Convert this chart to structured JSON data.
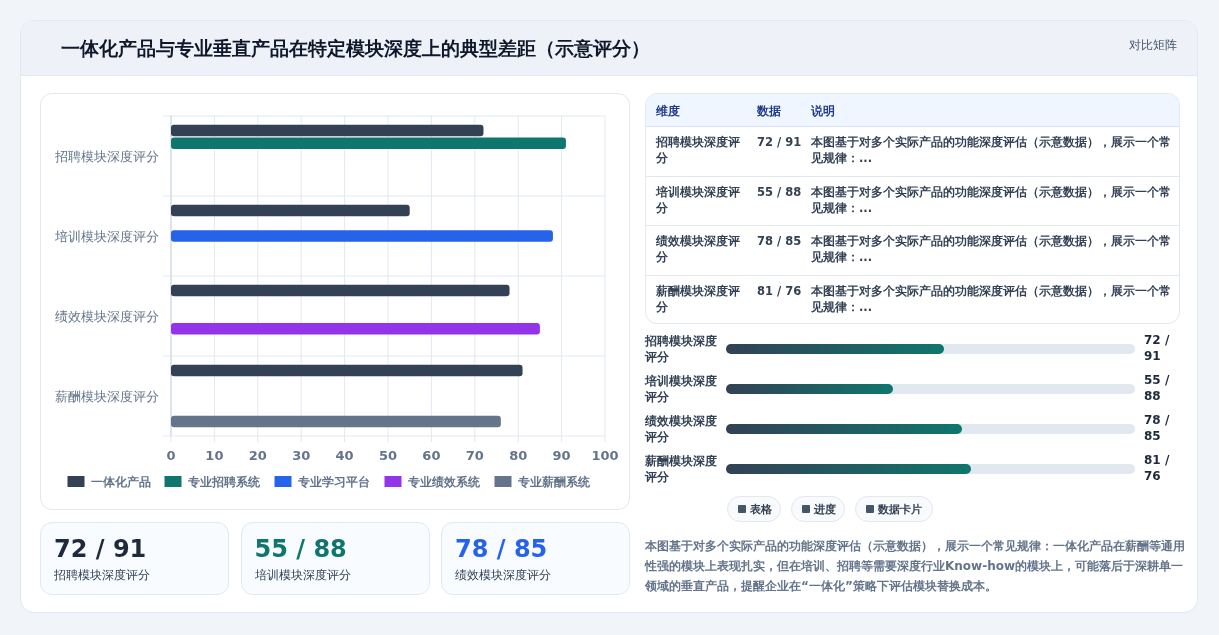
{
  "chart_data": [
    {
      "type": "other",
      "title": "一体化产品与专业垂直产品在特定模块深度上的典型差距（示意评分）",
      "subtitle": "对比矩阵"
    },
    {
      "type": "bar",
      "orientation": "horizontal",
      "categories": [
        "招聘模块深度评分",
        "培训模块深度评分",
        "绩效模块深度评分",
        "薪酬模块深度评分"
      ],
      "series": [
        {
          "name": "一体化产品",
          "color": "#334155",
          "values": [
            72,
            55,
            78,
            81
          ]
        },
        {
          "name": "专业招聘系统",
          "color": "#0f766e",
          "values": [
            91,
            null,
            null,
            null
          ]
        },
        {
          "name": "专业学习平台",
          "color": "#2563eb",
          "values": [
            null,
            88,
            null,
            null
          ]
        },
        {
          "name": "专业绩效系统",
          "color": "#9333ea",
          "values": [
            null,
            null,
            85,
            null
          ]
        },
        {
          "name": "专业薪酬系统",
          "color": "#64748b",
          "values": [
            null,
            null,
            null,
            76
          ]
        }
      ],
      "xlim": [
        0,
        100
      ],
      "xticks": [
        0,
        10,
        20,
        30,
        40,
        50,
        60,
        70,
        80,
        90,
        100
      ],
      "grid": true,
      "legend": "bottom"
    },
    {
      "type": "other",
      "annotations": [
        "维度",
        "数据",
        "说明",
        "招聘模块深度评分",
        "72 / 91",
        "本图基于对多个实际产品的功能深度评估（示意数据），展示一个常见规律：...",
        "培训模块深度评分",
        "55 / 88",
        "本图基于对多个实际产品的功能深度评估（示意数据），展示一个常见规律：...",
        "绩效模块深度评分",
        "78 / 85",
        "本图基于对多个实际产品的功能深度评估（示意数据），展示一个常见规律：...",
        "薪酬模块深度评分",
        "81 / 76",
        "本图基于对多个实际产品的功能深度评估（示意数据），展示一个常见规律：..."
      ]
    },
    {
      "type": "bar",
      "orientation": "horizontal",
      "xlim": [
        0,
        135
      ],
      "tick_labels": false,
      "categories": [
        "招聘模块深度评分",
        "培训模块深度评分",
        "绩效模块深度评分",
        "薪酬模块深度评分"
      ],
      "values": [
        72,
        55,
        78,
        81
      ],
      "color": "#0f766e",
      "value_labels": [
        "72 / 91",
        "55 / 88",
        "78 / 85",
        "81 / 76"
      ]
    },
    {
      "type": "other",
      "annotations": [
        "72 / 91",
        "招聘模块深度评分",
        "55 / 88",
        "培训模块深度评分",
        "78 / 85",
        "绩效模块深度评分"
      ],
      "colors": [
        "#1e293b",
        "#0f766e",
        "#2563eb"
      ]
    },
    {
      "type": "other",
      "annotations": [
        "表格",
        "进度",
        "数据卡片",
        "本图基于对多个实际产品的功能深度评估（示意数据），展示一个常见规律：一体化产品在薪酬等通用性强的模块上表现扎实，但在培训、招聘等需要深度行业Know-how的模块上，可能落后于深耕单一领域的垂直产品，提醒企业在“一体化”策略下评估模块替换成本。"
      ]
    }
  ]
}
